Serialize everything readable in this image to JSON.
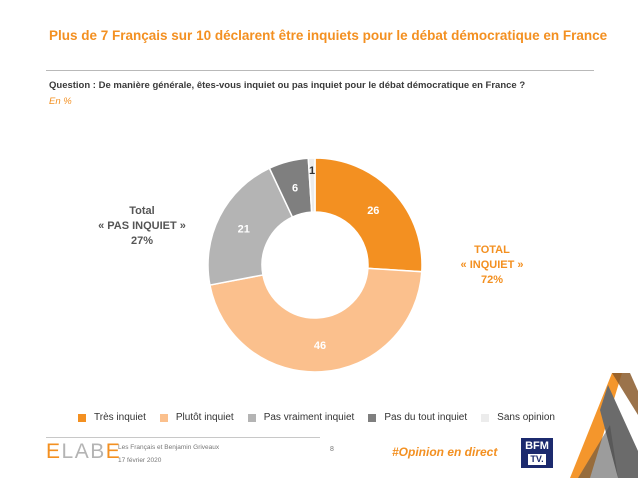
{
  "title": "Plus de 7 Français sur 10 déclarent être inquiets pour le débat démocratique en France",
  "question": "Question : De manière générale, êtes-vous inquiet ou pas inquiet pour le débat démocratique en France ?",
  "unit": "En %",
  "colors": {
    "accent": "#f39021",
    "tres_inquiet": "#f39021",
    "plutot_inquiet": "#fbc08d",
    "pas_vraiment": "#b4b4b4",
    "pas_du_tout": "#7f7f7f",
    "sans_opinion": "#ececec"
  },
  "chart_data": {
    "type": "pie",
    "style": "donut",
    "unit": "%",
    "slices": [
      {
        "label": "Très inquiet",
        "value": 26,
        "color": "#f39021",
        "text_color": "#ffffff"
      },
      {
        "label": "Plutôt inquiet",
        "value": 46,
        "color": "#fbc08d",
        "text_color": "#ffffff"
      },
      {
        "label": "Pas vraiment inquiet",
        "value": 21,
        "color": "#b4b4b4",
        "text_color": "#ffffff"
      },
      {
        "label": "Pas du tout inquiet",
        "value": 6,
        "color": "#7f7f7f",
        "text_color": "#ffffff"
      },
      {
        "label": "Sans opinion",
        "value": 1,
        "color": "#ececec",
        "text_color": "#333333"
      }
    ],
    "legend_position": "bottom",
    "totals": {
      "negative": {
        "label": "Total",
        "sublabel": "« PAS INQUIET »",
        "value": "27%"
      },
      "positive": {
        "label": "TOTAL",
        "sublabel": "« INQUIET »",
        "value": "72%"
      }
    }
  },
  "legend": [
    {
      "label": "Très inquiet",
      "color": "#f39021"
    },
    {
      "label": "Plutôt inquiet",
      "color": "#fbc08d"
    },
    {
      "label": "Pas vraiment inquiet",
      "color": "#b4b4b4"
    },
    {
      "label": "Pas du tout inquiet",
      "color": "#7f7f7f"
    },
    {
      "label": "Sans opinion",
      "color": "#ececec"
    }
  ],
  "footer": {
    "logo": "ELABE",
    "study": "Les Français et Benjamin Griveaux",
    "date": "17 février 2020",
    "page": "8",
    "hashtag": "#Opinion en direct",
    "partner_top": "BFM",
    "partner_bottom": "TV."
  }
}
